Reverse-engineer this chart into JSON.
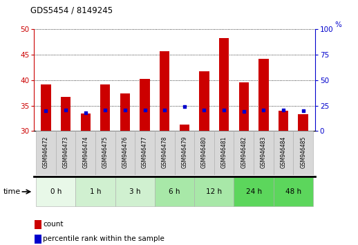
{
  "title": "GDS5454 / 8149245",
  "samples": [
    "GSM946472",
    "GSM946473",
    "GSM946474",
    "GSM946475",
    "GSM946476",
    "GSM946477",
    "GSM946478",
    "GSM946479",
    "GSM946480",
    "GSM946481",
    "GSM946482",
    "GSM946483",
    "GSM946484",
    "GSM946485"
  ],
  "count_values": [
    39.2,
    36.7,
    33.5,
    39.2,
    37.4,
    40.2,
    45.7,
    31.3,
    41.8,
    48.3,
    39.6,
    44.2,
    34.0,
    33.3
  ],
  "percentile_values": [
    20,
    21,
    18,
    21,
    21,
    21,
    21,
    24,
    21,
    21,
    19,
    21,
    21,
    20
  ],
  "ylim_left": [
    30,
    50
  ],
  "ylim_right": [
    0,
    100
  ],
  "yticks_left": [
    30,
    35,
    40,
    45,
    50
  ],
  "yticks_right": [
    0,
    25,
    50,
    75,
    100
  ],
  "time_groups": [
    {
      "label": "0 h",
      "indices": [
        0,
        1
      ],
      "color": "#e8f8e8"
    },
    {
      "label": "1 h",
      "indices": [
        2,
        3
      ],
      "color": "#d0f0d0"
    },
    {
      "label": "3 h",
      "indices": [
        4,
        5
      ],
      "color": "#d0f0d0"
    },
    {
      "label": "6 h",
      "indices": [
        6,
        7
      ],
      "color": "#a8e8a8"
    },
    {
      "label": "12 h",
      "indices": [
        8,
        9
      ],
      "color": "#a8e8a8"
    },
    {
      "label": "24 h",
      "indices": [
        10,
        11
      ],
      "color": "#5cd65c"
    },
    {
      "label": "48 h",
      "indices": [
        12,
        13
      ],
      "color": "#5cd65c"
    }
  ],
  "bar_color": "#cc0000",
  "dot_color": "#0000cc",
  "bar_width": 0.5,
  "label_count": "count",
  "label_percentile": "percentile rank within the sample",
  "left_axis_color": "#cc0000",
  "right_axis_color": "#0000cc",
  "sample_box_color": "#d8d8d8",
  "sample_box_edge": "#aaaaaa"
}
